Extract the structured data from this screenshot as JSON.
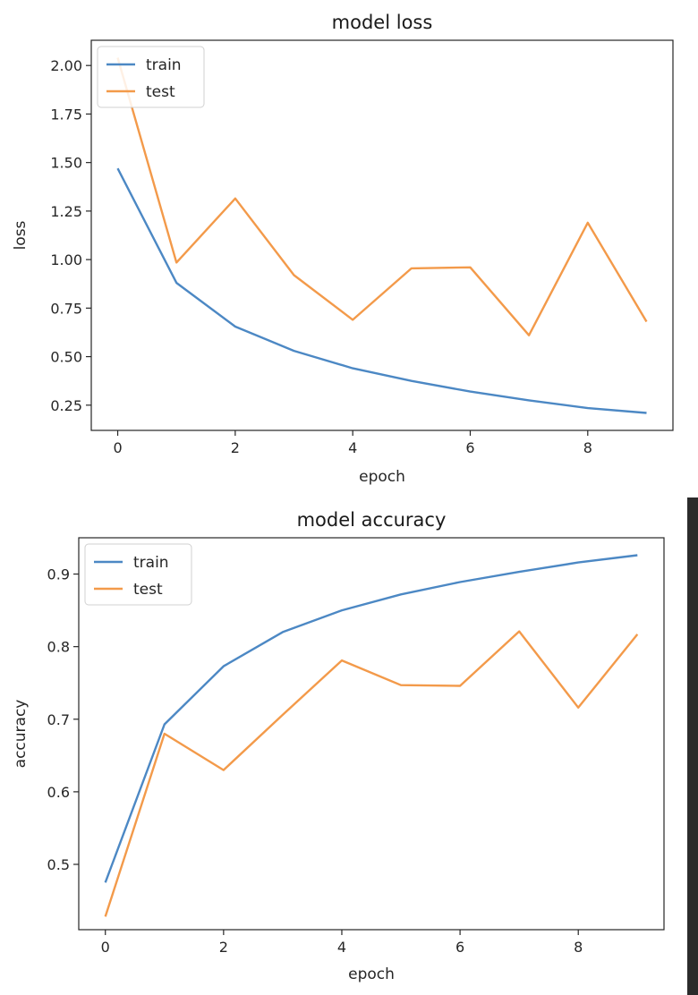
{
  "chart_data": [
    {
      "type": "line",
      "title": "model loss",
      "xlabel": "epoch",
      "ylabel": "loss",
      "x": [
        0,
        1,
        2,
        3,
        4,
        5,
        6,
        7,
        8,
        9
      ],
      "xlim": [
        -0.45,
        9.45
      ],
      "ylim": [
        0.12,
        2.13
      ],
      "xticks": [
        0,
        2,
        4,
        6,
        8
      ],
      "yticks": [
        0.25,
        0.5,
        0.75,
        1.0,
        1.25,
        1.5,
        1.75,
        2.0
      ],
      "ytick_labels": [
        "0.25",
        "0.50",
        "0.75",
        "1.00",
        "1.25",
        "1.50",
        "1.75",
        "2.00"
      ],
      "grid": false,
      "legend_position": "top-left",
      "series": [
        {
          "name": "train",
          "color": "#4c88c4",
          "values": [
            1.47,
            0.88,
            0.655,
            0.53,
            0.44,
            0.375,
            0.32,
            0.275,
            0.235,
            0.21
          ]
        },
        {
          "name": "test",
          "color": "#f39a4a",
          "values": [
            2.04,
            0.985,
            1.315,
            0.92,
            0.69,
            0.955,
            0.96,
            0.61,
            1.19,
            0.68
          ]
        }
      ]
    },
    {
      "type": "line",
      "title": "model accuracy",
      "xlabel": "epoch",
      "ylabel": "accuracy",
      "x": [
        0,
        1,
        2,
        3,
        4,
        5,
        6,
        7,
        8,
        9
      ],
      "xlim": [
        -0.45,
        9.45
      ],
      "ylim": [
        0.41,
        0.95
      ],
      "xticks": [
        0,
        2,
        4,
        6,
        8
      ],
      "yticks": [
        0.5,
        0.6,
        0.7,
        0.8,
        0.9
      ],
      "ytick_labels": [
        "0.5",
        "0.6",
        "0.7",
        "0.8",
        "0.9"
      ],
      "grid": false,
      "legend_position": "top-left",
      "series": [
        {
          "name": "train",
          "color": "#4c88c4",
          "values": [
            0.475,
            0.693,
            0.773,
            0.82,
            0.85,
            0.872,
            0.889,
            0.903,
            0.916,
            0.926
          ]
        },
        {
          "name": "test",
          "color": "#f39a4a",
          "values": [
            0.428,
            0.68,
            0.63,
            0.706,
            0.781,
            0.747,
            0.746,
            0.821,
            0.716,
            0.817
          ]
        }
      ]
    }
  ]
}
